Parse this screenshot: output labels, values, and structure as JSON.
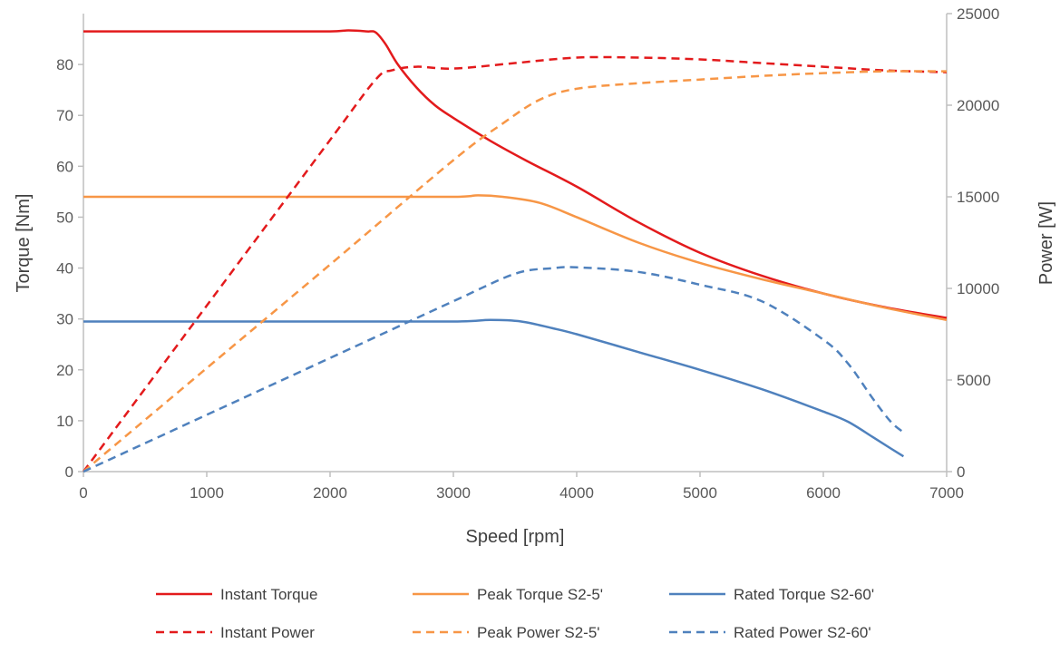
{
  "chart_data": {
    "type": "line",
    "title": "",
    "xlabel": "Speed [rpm]",
    "ylabel": "Torque [Nm]",
    "y2label": "Power [W]",
    "xlim": [
      0,
      7000
    ],
    "ylim": [
      0,
      90
    ],
    "y2lim": [
      0,
      25000
    ],
    "x_ticks": [
      0,
      1000,
      2000,
      3000,
      4000,
      5000,
      6000,
      7000
    ],
    "y_ticks": [
      0,
      10,
      20,
      30,
      40,
      50,
      60,
      70,
      80
    ],
    "y2_ticks": [
      0,
      5000,
      10000,
      15000,
      20000,
      25000
    ],
    "grid": false,
    "legend_position": "bottom",
    "series": [
      {
        "name": "Instant Torque",
        "axis": "left",
        "style": "solid",
        "color": "#e31a1c",
        "points": [
          [
            0,
            86.5
          ],
          [
            500,
            86.5
          ],
          [
            1000,
            86.5
          ],
          [
            1500,
            86.5
          ],
          [
            2000,
            86.5
          ],
          [
            2150,
            86.7
          ],
          [
            2300,
            86.5
          ],
          [
            2370,
            86.3
          ],
          [
            2450,
            84
          ],
          [
            2550,
            80
          ],
          [
            2700,
            75.5
          ],
          [
            2850,
            72
          ],
          [
            3000,
            69.5
          ],
          [
            3300,
            65
          ],
          [
            3600,
            61
          ],
          [
            4000,
            56
          ],
          [
            4500,
            49
          ],
          [
            5000,
            43
          ],
          [
            5500,
            38.5
          ],
          [
            6000,
            35
          ],
          [
            6500,
            32.3
          ],
          [
            7000,
            30.2
          ]
        ]
      },
      {
        "name": "Peak Torque S2-5'",
        "axis": "left",
        "style": "solid",
        "color": "#f79646",
        "points": [
          [
            0,
            54
          ],
          [
            1000,
            54
          ],
          [
            2000,
            54
          ],
          [
            3000,
            54
          ],
          [
            3200,
            54.3
          ],
          [
            3400,
            54
          ],
          [
            3700,
            52.8
          ],
          [
            4000,
            50
          ],
          [
            4500,
            45
          ],
          [
            5000,
            41
          ],
          [
            5500,
            37.8
          ],
          [
            6000,
            35
          ],
          [
            6500,
            32.2
          ],
          [
            7000,
            29.8
          ]
        ]
      },
      {
        "name": "Rated Torque S2-60'",
        "axis": "left",
        "style": "solid",
        "color": "#4f81bd",
        "points": [
          [
            0,
            29.5
          ],
          [
            1000,
            29.5
          ],
          [
            2000,
            29.5
          ],
          [
            3000,
            29.5
          ],
          [
            3300,
            29.8
          ],
          [
            3550,
            29.5
          ],
          [
            3800,
            28.2
          ],
          [
            4000,
            27
          ],
          [
            4500,
            23.5
          ],
          [
            5000,
            20
          ],
          [
            5500,
            16.2
          ],
          [
            6000,
            11.8
          ],
          [
            6200,
            9.8
          ],
          [
            6400,
            6.8
          ],
          [
            6550,
            4.5
          ],
          [
            6650,
            3
          ]
        ]
      },
      {
        "name": "Instant Power",
        "axis": "right",
        "style": "dashed",
        "color": "#e31a1c",
        "points": [
          [
            0,
            0
          ],
          [
            1000,
            9060
          ],
          [
            2000,
            18100
          ],
          [
            2370,
            21400
          ],
          [
            2500,
            21900
          ],
          [
            2700,
            22100
          ],
          [
            3000,
            22000
          ],
          [
            3500,
            22300
          ],
          [
            4000,
            22600
          ],
          [
            4500,
            22600
          ],
          [
            5000,
            22500
          ],
          [
            5500,
            22300
          ],
          [
            6000,
            22100
          ],
          [
            6500,
            21900
          ],
          [
            7000,
            21800
          ]
        ]
      },
      {
        "name": "Peak Power S2-5'",
        "axis": "right",
        "style": "dashed",
        "color": "#f79646",
        "points": [
          [
            0,
            0
          ],
          [
            1000,
            5650
          ],
          [
            2000,
            11300
          ],
          [
            3000,
            17000
          ],
          [
            3400,
            19000
          ],
          [
            3700,
            20300
          ],
          [
            4000,
            20900
          ],
          [
            4500,
            21200
          ],
          [
            5000,
            21400
          ],
          [
            5500,
            21600
          ],
          [
            6000,
            21750
          ],
          [
            6500,
            21850
          ],
          [
            7000,
            21850
          ]
        ]
      },
      {
        "name": "Rated Power S2-60'",
        "axis": "right",
        "style": "dashed",
        "color": "#4f81bd",
        "points": [
          [
            0,
            0
          ],
          [
            1000,
            3100
          ],
          [
            2000,
            6200
          ],
          [
            3000,
            9300
          ],
          [
            3500,
            10800
          ],
          [
            3800,
            11100
          ],
          [
            4000,
            11150
          ],
          [
            4500,
            10900
          ],
          [
            5000,
            10200
          ],
          [
            5500,
            9300
          ],
          [
            6000,
            7200
          ],
          [
            6200,
            5900
          ],
          [
            6400,
            4000
          ],
          [
            6550,
            2700
          ],
          [
            6660,
            2100
          ]
        ]
      }
    ]
  }
}
